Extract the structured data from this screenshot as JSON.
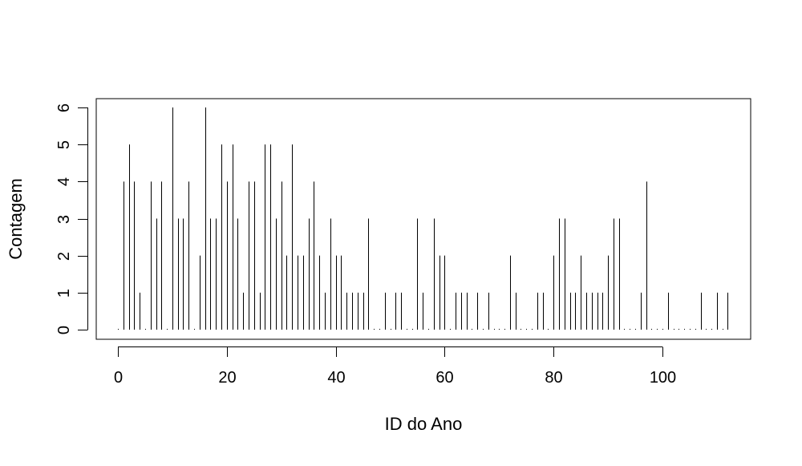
{
  "chart_data": {
    "type": "bar",
    "title": "",
    "xlabel": "ID do Ano",
    "ylabel": "Contagem",
    "xlim": [
      0,
      112
    ],
    "ylim": [
      0,
      6
    ],
    "xticks": [
      0,
      20,
      40,
      60,
      80,
      100
    ],
    "yticks": [
      0,
      1,
      2,
      3,
      4,
      5,
      6
    ],
    "grid": false,
    "legend": "none",
    "colors": {
      "bars": "#000000",
      "axes": "#000000",
      "background": "#ffffff"
    },
    "x": [
      0,
      1,
      2,
      3,
      4,
      5,
      6,
      7,
      8,
      9,
      10,
      11,
      12,
      13,
      14,
      15,
      16,
      17,
      18,
      19,
      20,
      21,
      22,
      23,
      24,
      25,
      26,
      27,
      28,
      29,
      30,
      31,
      32,
      33,
      34,
      35,
      36,
      37,
      38,
      39,
      40,
      41,
      42,
      43,
      44,
      45,
      46,
      47,
      48,
      49,
      50,
      51,
      52,
      53,
      54,
      55,
      56,
      57,
      58,
      59,
      60,
      61,
      62,
      63,
      64,
      65,
      66,
      67,
      68,
      69,
      70,
      71,
      72,
      73,
      74,
      75,
      76,
      77,
      78,
      79,
      80,
      81,
      82,
      83,
      84,
      85,
      86,
      87,
      88,
      89,
      90,
      91,
      92,
      93,
      94,
      95,
      96,
      97,
      98,
      99,
      100,
      101,
      102,
      103,
      104,
      105,
      106,
      107,
      108,
      109,
      110,
      111,
      112
    ],
    "values": [
      0,
      4,
      5,
      4,
      1,
      0,
      4,
      3,
      4,
      0,
      6,
      3,
      3,
      4,
      0,
      2,
      6,
      3,
      3,
      5,
      4,
      5,
      3,
      1,
      4,
      4,
      1,
      5,
      5,
      3,
      4,
      2,
      5,
      2,
      2,
      3,
      4,
      2,
      1,
      3,
      2,
      2,
      1,
      1,
      1,
      1,
      3,
      0,
      0,
      1,
      0,
      1,
      1,
      0,
      0,
      3,
      1,
      0,
      3,
      2,
      2,
      0,
      1,
      1,
      1,
      0,
      1,
      0,
      1,
      0,
      0,
      0,
      2,
      1,
      0,
      0,
      0,
      1,
      1,
      0,
      2,
      3,
      3,
      1,
      1,
      2,
      1,
      1,
      1,
      1,
      2,
      3,
      3,
      0,
      0,
      0,
      1,
      4,
      0,
      0,
      0,
      1,
      0,
      0,
      0,
      0,
      0,
      1,
      0,
      0,
      1,
      0,
      1
    ]
  }
}
